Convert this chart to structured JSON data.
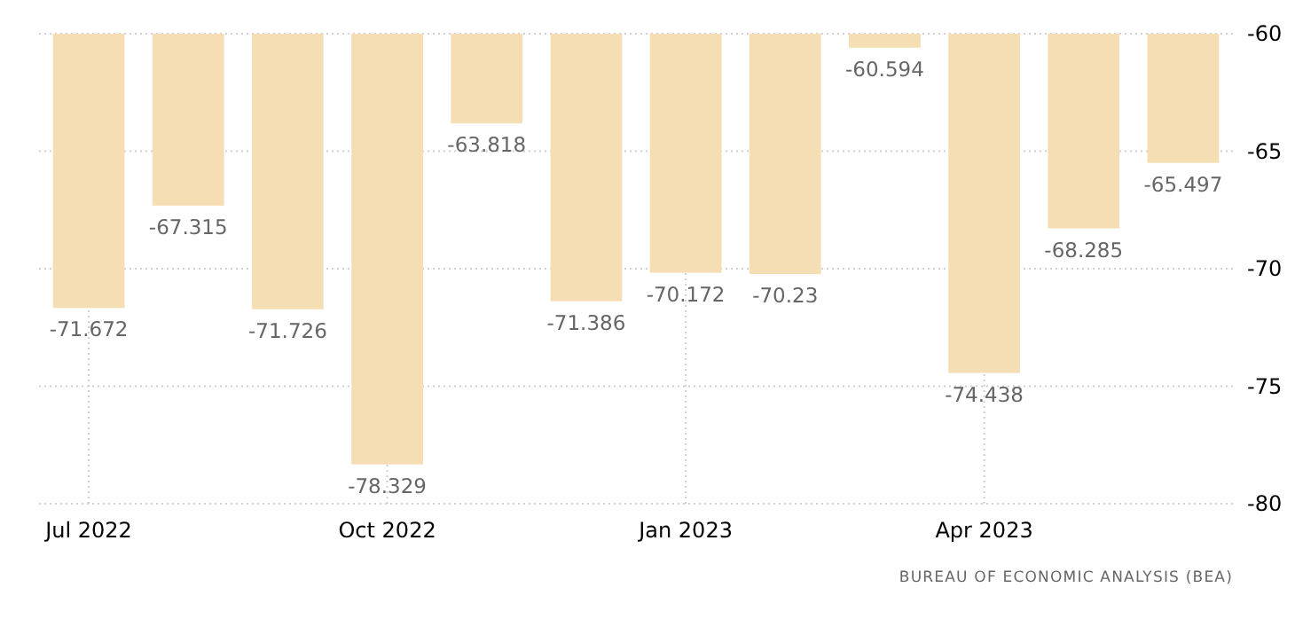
{
  "chart_data": {
    "type": "bar",
    "categories": [
      "Jul 2022",
      null,
      null,
      "Oct 2022",
      null,
      null,
      "Jan 2023",
      null,
      null,
      "Apr 2023",
      null,
      null
    ],
    "values": [
      -71.672,
      -67.315,
      -71.726,
      -78.329,
      -63.818,
      -71.386,
      -70.172,
      -70.23,
      -60.594,
      -74.438,
      -68.285,
      -65.497
    ],
    "color": "#f5deb3",
    "ylim": [
      -80,
      -60
    ],
    "yticks": [
      -80,
      -75,
      -70,
      -65,
      -60
    ],
    "grid": true,
    "data_labels": true,
    "annotations": [
      "BUREAU OF ECONOMIC ANALYSIS (BEA)"
    ]
  }
}
